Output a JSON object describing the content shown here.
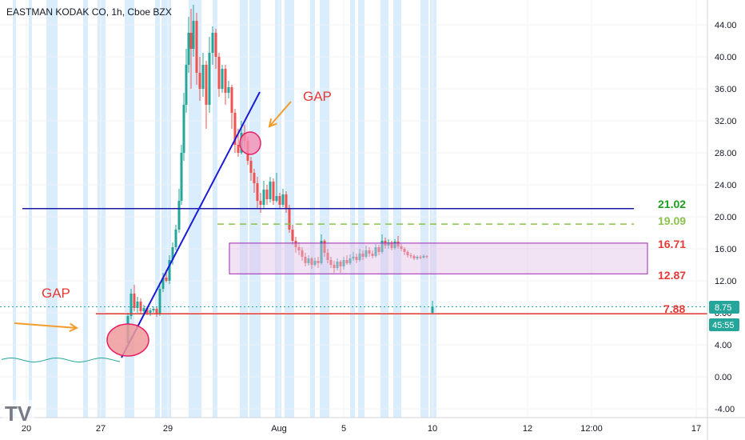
{
  "chart_data": {
    "type": "candlestick",
    "title": "EASTMAN KODAK CO, 1h, Cboe BZX",
    "yticks": [
      "44.00",
      "40.00",
      "36.00",
      "32.00",
      "28.00",
      "24.00",
      "20.00",
      "16.00",
      "12.00",
      "8.00",
      "4.00",
      "0.00",
      "-4.00"
    ],
    "ytick_values": [
      44,
      40,
      36,
      32,
      28,
      24,
      20,
      16,
      12,
      8,
      4,
      0,
      -4
    ],
    "ylim": [
      -5,
      47
    ],
    "xticks": [
      "20",
      "27",
      "29",
      "Aug",
      "5",
      "10",
      "12",
      "12:00",
      "17"
    ],
    "grid": true,
    "colors": {
      "up": "#26a69a",
      "down": "#ef5350",
      "session_band": "#bbdefb"
    },
    "levels": [
      {
        "label": "21.02",
        "value": 21.02,
        "color": "#1e9e1e"
      },
      {
        "label": "19.09",
        "value": 19.09,
        "color": "#8bc34a"
      },
      {
        "label": "16.71",
        "value": 16.71,
        "color": "#e53935"
      },
      {
        "label": "12.87",
        "value": 12.87,
        "color": "#e53935"
      },
      {
        "label": "7.88",
        "value": 7.88,
        "color": "#e53935"
      }
    ],
    "annotations": [
      {
        "text": "GAP",
        "color": "#e53935"
      },
      {
        "text": "GAP",
        "color": "#e53935"
      }
    ],
    "price_badge": {
      "label": "8.75",
      "value": 8.75,
      "color": "#26a69a"
    },
    "timer_badge": {
      "label": "45:55",
      "color": "#26a69a"
    },
    "logo": "TV"
  }
}
